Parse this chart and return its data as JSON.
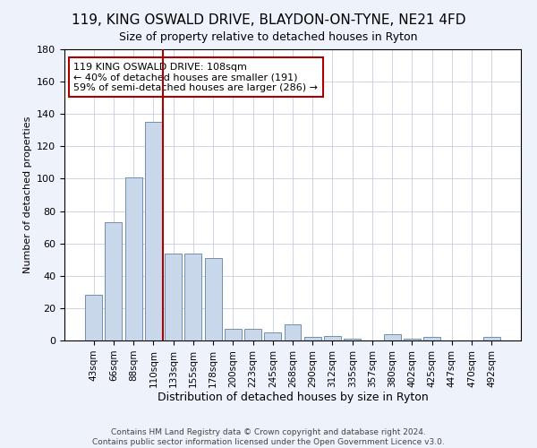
{
  "title": "119, KING OSWALD DRIVE, BLAYDON-ON-TYNE, NE21 4FD",
  "subtitle": "Size of property relative to detached houses in Ryton",
  "xlabel": "Distribution of detached houses by size in Ryton",
  "ylabel": "Number of detached properties",
  "bar_labels": [
    "43sqm",
    "66sqm",
    "88sqm",
    "110sqm",
    "133sqm",
    "155sqm",
    "178sqm",
    "200sqm",
    "223sqm",
    "245sqm",
    "268sqm",
    "290sqm",
    "312sqm",
    "335sqm",
    "357sqm",
    "380sqm",
    "402sqm",
    "425sqm",
    "447sqm",
    "470sqm",
    "492sqm"
  ],
  "bar_values": [
    28,
    73,
    101,
    135,
    54,
    54,
    51,
    7,
    7,
    5,
    10,
    2,
    3,
    1,
    0,
    4,
    1,
    2,
    0,
    0,
    2
  ],
  "bar_color": "#c8d8ea",
  "bar_edge_color": "#7090b0",
  "vline_x": 3.5,
  "vline_color": "#aa0000",
  "ylim": [
    0,
    180
  ],
  "yticks": [
    0,
    20,
    40,
    60,
    80,
    100,
    120,
    140,
    160,
    180
  ],
  "annotation_text": "119 KING OSWALD DRIVE: 108sqm\n← 40% of detached houses are smaller (191)\n59% of semi-detached houses are larger (286) →",
  "annotation_box_color": "white",
  "annotation_box_edge_color": "#aa0000",
  "footer_text": "Contains HM Land Registry data © Crown copyright and database right 2024.\nContains public sector information licensed under the Open Government Licence v3.0.",
  "background_color": "#eef2fb",
  "plot_bg_color": "white",
  "title_fontsize": 11,
  "subtitle_fontsize": 9,
  "xlabel_fontsize": 9,
  "ylabel_fontsize": 8,
  "tick_fontsize": 8,
  "xtick_fontsize": 7.5,
  "annotation_fontsize": 8,
  "footer_fontsize": 6.5
}
